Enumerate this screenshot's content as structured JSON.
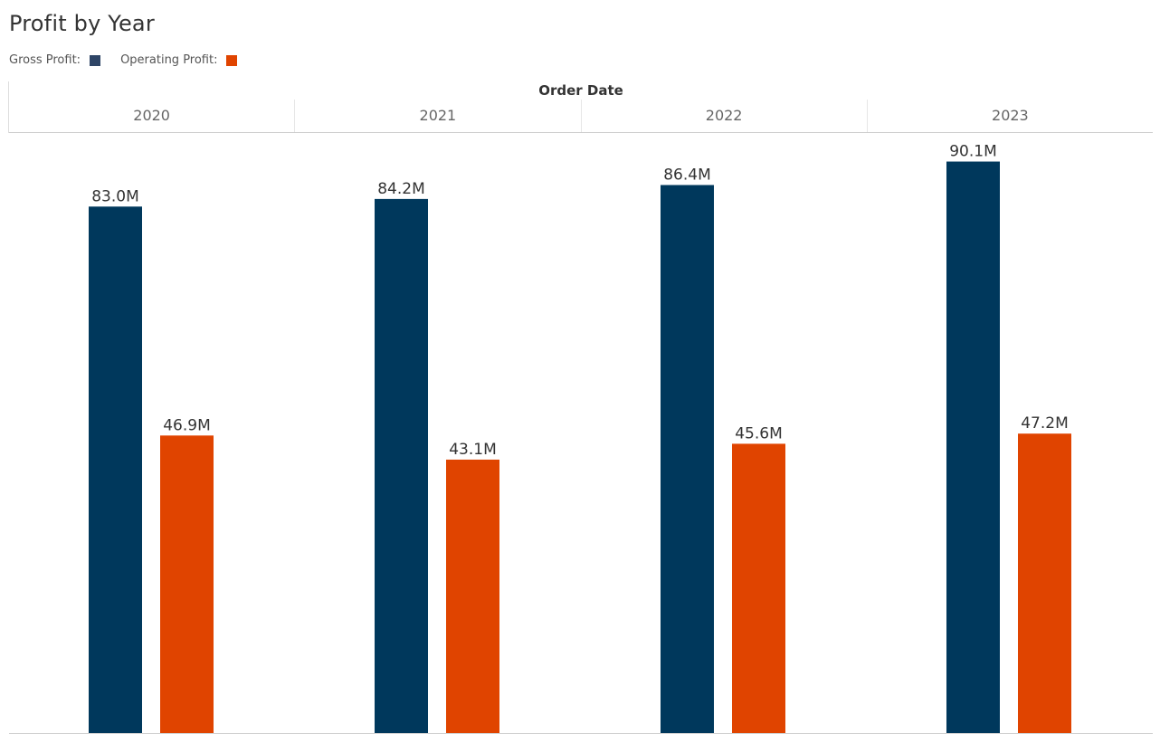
{
  "chart_data": {
    "type": "bar",
    "title": "Profit  by Year",
    "column_header": "Order Date",
    "categories": [
      "2020",
      "2021",
      "2022",
      "2023"
    ],
    "series": [
      {
        "name": "Gross Profit",
        "color": "#00385C",
        "legend_color": "#2E4566",
        "values": [
          83.0,
          84.2,
          86.4,
          90.1
        ],
        "labels": [
          "83.0M",
          "84.2M",
          "86.4M",
          "90.1M"
        ]
      },
      {
        "name": "Operating Profit",
        "color": "#E04400",
        "legend_color": "#E04400",
        "values": [
          46.9,
          43.1,
          45.6,
          47.2
        ],
        "labels": [
          "46.9M",
          "43.1M",
          "45.6M",
          "47.2M"
        ]
      }
    ],
    "legend": {
      "gross_label": "Gross Profit:",
      "operating_label": "Operating Profit:",
      "placement": "top-left"
    },
    "ylim": [
      0,
      94.6
    ],
    "unit": "M",
    "grid": false,
    "xlabel": "",
    "ylabel": ""
  }
}
